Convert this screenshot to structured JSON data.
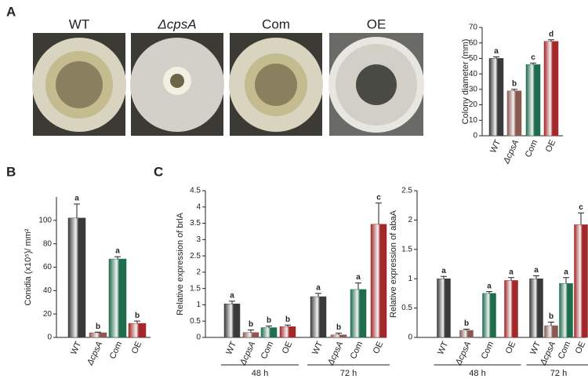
{
  "panels": [
    "A",
    "B",
    "C"
  ],
  "images": {
    "labels": [
      "WT",
      "ΔcpsA",
      "Com",
      "OE"
    ]
  },
  "chart_data": [
    {
      "type": "bar",
      "y_label": "Colony diameter (mm)",
      "categories": [
        "WT",
        "ΔcpsA",
        "Com",
        "OE"
      ],
      "values": [
        50,
        29,
        46,
        61
      ],
      "errors": [
        1,
        1,
        1,
        1
      ],
      "letters": [
        "a",
        "b",
        "c",
        "d"
      ],
      "colors": [
        "#3a3a3a",
        "#8a5a52",
        "#1e6e4e",
        "#a3282a"
      ],
      "ylim": [
        0,
        70
      ],
      "yticks": [
        0,
        10,
        20,
        30,
        40,
        50,
        60,
        70
      ]
    },
    {
      "type": "bar",
      "y_label": "Conidia (x10⁵)/ mm²",
      "categories": [
        "WT",
        "ΔcpsA",
        "Com",
        "OE"
      ],
      "values": [
        102,
        4,
        67,
        12
      ],
      "errors": [
        12,
        0.5,
        2,
        2
      ],
      "letters": [
        "a",
        "b",
        "a",
        "b"
      ],
      "colors": [
        "#3a3a3a",
        "#8a5a52",
        "#1e6e4e",
        "#a3282a"
      ],
      "ylim": [
        0,
        120
      ],
      "yticks": [
        0,
        20,
        40,
        60,
        80,
        100
      ]
    },
    {
      "type": "bar",
      "y_label": "Relative expression of brlA",
      "categories": [
        "WT",
        "ΔcpsA",
        "Com",
        "OE",
        "WT",
        "ΔcpsA",
        "Com",
        "OE"
      ],
      "values": [
        1.03,
        0.15,
        0.3,
        0.33,
        1.25,
        0.08,
        1.47,
        3.47
      ],
      "errors": [
        0.08,
        0.08,
        0.05,
        0.05,
        0.1,
        0.05,
        0.2,
        0.65
      ],
      "letters": [
        "a",
        "b",
        "b",
        "b",
        "a",
        "b",
        "a",
        "c"
      ],
      "colors": [
        "#3a3a3a",
        "#8a5a52",
        "#1e6e4e",
        "#a3282a",
        "#3a3a3a",
        "#8a5a52",
        "#1e6e4e",
        "#a3282a"
      ],
      "groups": [
        "48 h",
        "72 h"
      ],
      "ylim": [
        0,
        4.5
      ],
      "yticks": [
        0,
        0.5,
        1,
        1.5,
        2,
        2.5,
        3,
        3.5,
        4,
        4.5
      ]
    },
    {
      "type": "bar",
      "y_label": "Relative expression of abaA",
      "categories": [
        "WT",
        "ΔcpsA",
        "Com",
        "OE",
        "WT",
        "ΔcpsA",
        "Com",
        "OE"
      ],
      "values": [
        1.0,
        0.12,
        0.75,
        0.97,
        1.0,
        0.2,
        0.92,
        1.92
      ],
      "errors": [
        0.04,
        0.02,
        0.03,
        0.05,
        0.05,
        0.06,
        0.1,
        0.2
      ],
      "letters": [
        "a",
        "b",
        "a",
        "a",
        "a",
        "b",
        "a",
        "c"
      ],
      "colors": [
        "#3a3a3a",
        "#8a5a52",
        "#1e6e4e",
        "#a3282a",
        "#3a3a3a",
        "#8a5a52",
        "#1e6e4e",
        "#a3282a"
      ],
      "groups": [
        "48 h",
        "72 h"
      ],
      "ylim": [
        0,
        2.5
      ],
      "yticks": [
        0,
        0.5,
        1,
        1.5,
        2,
        2.5
      ]
    }
  ]
}
